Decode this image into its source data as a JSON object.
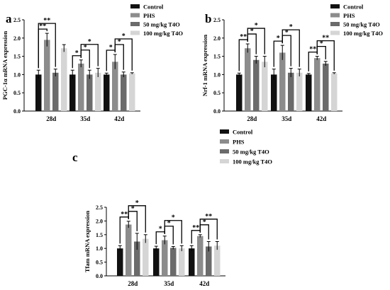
{
  "chart_data": [
    {
      "panel": "a",
      "type": "bar",
      "ylabel": "PGC-1α mRNA expression",
      "categories": [
        "28d",
        "35d",
        "42d"
      ],
      "ylim": [
        0,
        2.5
      ],
      "yticks": [
        "0.0",
        "0.5",
        "1.0",
        "1.5",
        "2.0",
        "2.5"
      ],
      "error_bars": true,
      "legend_position": "top-right",
      "series": [
        {
          "name": "Control",
          "color": "#111111",
          "values": [
            1.0,
            1.0,
            1.0
          ],
          "errors": [
            0.12,
            0.12,
            0.04
          ]
        },
        {
          "name": "PHS",
          "color": "#8c8c8c",
          "values": [
            1.95,
            1.3,
            1.35
          ],
          "errors": [
            0.18,
            0.1,
            0.2
          ]
        },
        {
          "name": "50 mg/kg T4O",
          "color": "#6b6b6b",
          "values": [
            1.05,
            1.0,
            1.0
          ],
          "errors": [
            0.1,
            0.12,
            0.07
          ]
        },
        {
          "name": "100 mg/kg T4O",
          "color": "#d5d5d5",
          "values": [
            1.72,
            1.05,
            1.03
          ],
          "errors": [
            0.1,
            0.12,
            0.02
          ]
        }
      ],
      "annotations": [
        {
          "text": "**",
          "group": 0,
          "from": 0,
          "to": 1,
          "level": 1
        },
        {
          "text": "**",
          "group": 0,
          "from": 0,
          "to": 2,
          "level": 2
        },
        {
          "text": "*",
          "group": 1,
          "from": 0,
          "to": 1,
          "level": 1
        },
        {
          "text": "*",
          "group": 1,
          "from": 1,
          "to": 2,
          "level": 2
        },
        {
          "text": "*",
          "group": 1,
          "from": 1,
          "to": 3,
          "level": 3
        },
        {
          "text": "*",
          "group": 2,
          "from": 0,
          "to": 1,
          "level": 1
        },
        {
          "text": "*",
          "group": 2,
          "from": 1,
          "to": 2,
          "level": 2
        },
        {
          "text": "*",
          "group": 2,
          "from": 1,
          "to": 3,
          "level": 3
        }
      ]
    },
    {
      "panel": "b",
      "type": "bar",
      "ylabel": "Nrf-1 mRNA expression",
      "categories": [
        "28d",
        "35d",
        "42d"
      ],
      "ylim": [
        0,
        2.5
      ],
      "yticks": [
        "0.0",
        "0.5",
        "1.0",
        "1.5",
        "2.0",
        "2.5"
      ],
      "error_bars": true,
      "legend_position": "top-right",
      "series": [
        {
          "name": "Control",
          "color": "#111111",
          "values": [
            1.0,
            1.0,
            1.0
          ],
          "errors": [
            0.04,
            0.15,
            0.03
          ]
        },
        {
          "name": "PHS",
          "color": "#8c8c8c",
          "values": [
            1.72,
            1.6,
            1.45
          ],
          "errors": [
            0.12,
            0.2,
            0.05
          ]
        },
        {
          "name": "50 mg/kg T4O",
          "color": "#6b6b6b",
          "values": [
            1.4,
            1.05,
            1.3
          ],
          "errors": [
            0.1,
            0.12,
            0.06
          ]
        },
        {
          "name": "100 mg/kg T4O",
          "color": "#d5d5d5",
          "values": [
            1.35,
            1.05,
            1.03
          ],
          "errors": [
            0.15,
            0.1,
            0.02
          ]
        }
      ],
      "annotations": [
        {
          "text": "**",
          "group": 0,
          "from": 0,
          "to": 1,
          "level": 1
        },
        {
          "text": "*",
          "group": 0,
          "from": 1,
          "to": 2,
          "level": 2
        },
        {
          "text": "*",
          "group": 0,
          "from": 1,
          "to": 3,
          "level": 3
        },
        {
          "text": "*",
          "group": 1,
          "from": 0,
          "to": 1,
          "level": 1
        },
        {
          "text": "*",
          "group": 1,
          "from": 1,
          "to": 2,
          "level": 2
        },
        {
          "text": "*",
          "group": 1,
          "from": 1,
          "to": 3,
          "level": 3
        },
        {
          "text": "**",
          "group": 2,
          "from": 0,
          "to": 1,
          "level": 1
        },
        {
          "text": "*",
          "group": 2,
          "from": 1,
          "to": 2,
          "level": 2
        },
        {
          "text": "**",
          "group": 2,
          "from": 1,
          "to": 3,
          "level": 3
        }
      ]
    },
    {
      "panel": "c",
      "type": "bar",
      "ylabel": "Tfam mRNA expression",
      "categories": [
        "28d",
        "35d",
        "42d"
      ],
      "ylim": [
        0,
        2.5
      ],
      "yticks": [
        "0.0",
        "0.5",
        "1.0",
        "1.5",
        "2.0",
        "2.5"
      ],
      "error_bars": true,
      "legend_position": "top-right",
      "series": [
        {
          "name": "Control",
          "color": "#111111",
          "values": [
            1.0,
            1.0,
            1.0
          ],
          "errors": [
            0.1,
            0.08,
            0.1
          ]
        },
        {
          "name": "PHS",
          "color": "#8c8c8c",
          "values": [
            1.87,
            1.3,
            1.45
          ],
          "errors": [
            0.12,
            0.15,
            0.05
          ]
        },
        {
          "name": "50 mg/kg T4O",
          "color": "#6b6b6b",
          "values": [
            1.25,
            1.02,
            1.07
          ],
          "errors": [
            0.3,
            0.05,
            0.18
          ]
        },
        {
          "name": "100 mg/kg T4O",
          "color": "#d5d5d5",
          "values": [
            1.35,
            1.0,
            1.1
          ],
          "errors": [
            0.15,
            0.1,
            0.15
          ]
        }
      ],
      "annotations": [
        {
          "text": "**",
          "group": 0,
          "from": 0,
          "to": 1,
          "level": 1
        },
        {
          "text": "*",
          "group": 0,
          "from": 1,
          "to": 2,
          "level": 2
        },
        {
          "text": "*",
          "group": 0,
          "from": 1,
          "to": 3,
          "level": 3
        },
        {
          "text": "*",
          "group": 1,
          "from": 0,
          "to": 1,
          "level": 1
        },
        {
          "text": "*",
          "group": 1,
          "from": 1,
          "to": 2,
          "level": 2
        },
        {
          "text": "*",
          "group": 1,
          "from": 1,
          "to": 3,
          "level": 3
        },
        {
          "text": "**",
          "group": 2,
          "from": 0,
          "to": 1,
          "level": 1
        },
        {
          "text": "*",
          "group": 2,
          "from": 1,
          "to": 2,
          "level": 2
        },
        {
          "text": "**",
          "group": 2,
          "from": 1,
          "to": 3,
          "level": 3
        }
      ]
    }
  ]
}
